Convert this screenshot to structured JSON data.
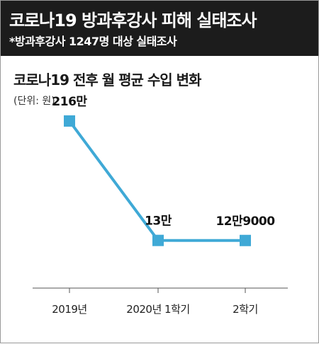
{
  "header": {
    "title": "코로나19 방과후강사 피해 실태조사",
    "subtitle": "*방과후강사 1247명 대상 실태조사"
  },
  "colors": {
    "header_bg": "#1c1c1c",
    "line": "#3fa9d6",
    "marker": "#3fa9d6",
    "axis": "#555555"
  },
  "chart_data": {
    "type": "line",
    "title": "코로나19 전후 월 평균 수입 변화",
    "unit_label": "(단위: 원)",
    "categories": [
      "2019년",
      "2020년 1학기",
      "2학기"
    ],
    "series": [
      {
        "values": [
          2160000,
          130000,
          129000
        ],
        "data_labels": [
          "216만",
          "13만",
          "12만9000"
        ]
      }
    ],
    "ylim": [
      -680000,
      2400000
    ],
    "grid": false,
    "legend": "none"
  }
}
